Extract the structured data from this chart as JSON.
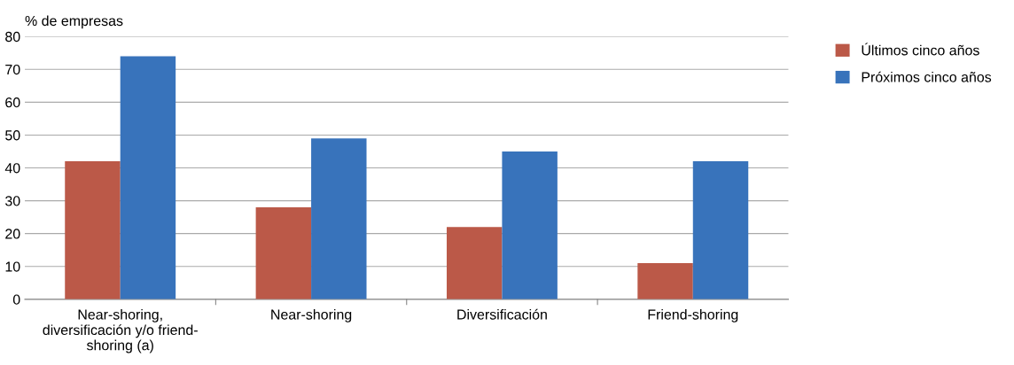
{
  "chart_data": {
    "type": "bar",
    "ylabel": "% de empresas",
    "categories": [
      "Near-shoring,\ndiversificación y/o friend-\nshoring (a)",
      "Near-shoring",
      "Diversificación",
      "Friend-shoring"
    ],
    "series": [
      {
        "name": "Últimos cinco años",
        "color": "#bb5948",
        "values": [
          42,
          28,
          22,
          11
        ]
      },
      {
        "name": "Próximos cinco años",
        "color": "#3873bb",
        "values": [
          74,
          49,
          45,
          42
        ]
      }
    ],
    "ylim": [
      0,
      80
    ],
    "yticks": [
      0,
      10,
      20,
      30,
      40,
      50,
      60,
      70,
      80
    ],
    "grid": "y",
    "legend": "top right"
  }
}
